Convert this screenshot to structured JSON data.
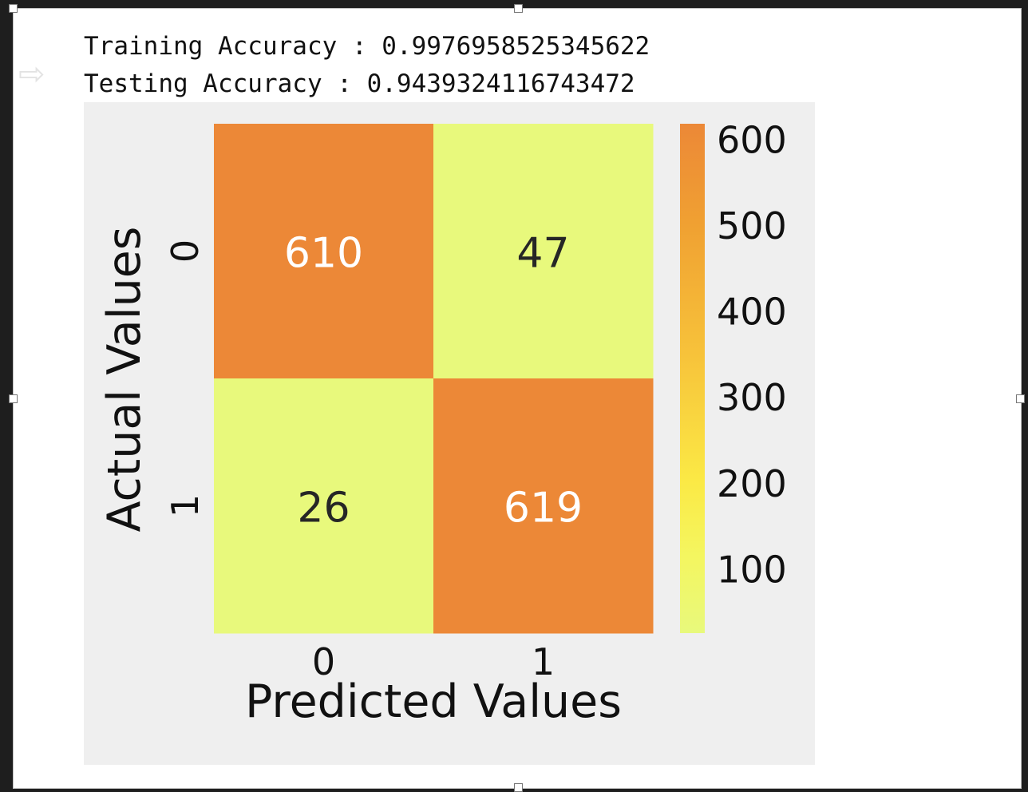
{
  "output": {
    "training_label": "Training Accuracy : ",
    "training_value": "0.9976958525345622",
    "testing_label": "Testing Accuracy : ",
    "testing_value": "0.9439324116743472"
  },
  "chart_data": {
    "type": "heatmap",
    "title": "",
    "xlabel": "Predicted Values",
    "ylabel": "Actual Values",
    "x_categories": [
      "0",
      "1"
    ],
    "y_categories": [
      "0",
      "1"
    ],
    "matrix": [
      [
        610,
        47
      ],
      [
        26,
        619
      ]
    ],
    "colormap": "Wistia",
    "colorbar": {
      "ticks": [
        100,
        200,
        300,
        400,
        500,
        600
      ],
      "range": [
        26,
        619
      ]
    },
    "colors": {
      "high": "#ec8837",
      "low": "#e8f97c",
      "annot_on_high": "#ffffff",
      "annot_on_low": "#262626",
      "background": "#efefef"
    }
  }
}
